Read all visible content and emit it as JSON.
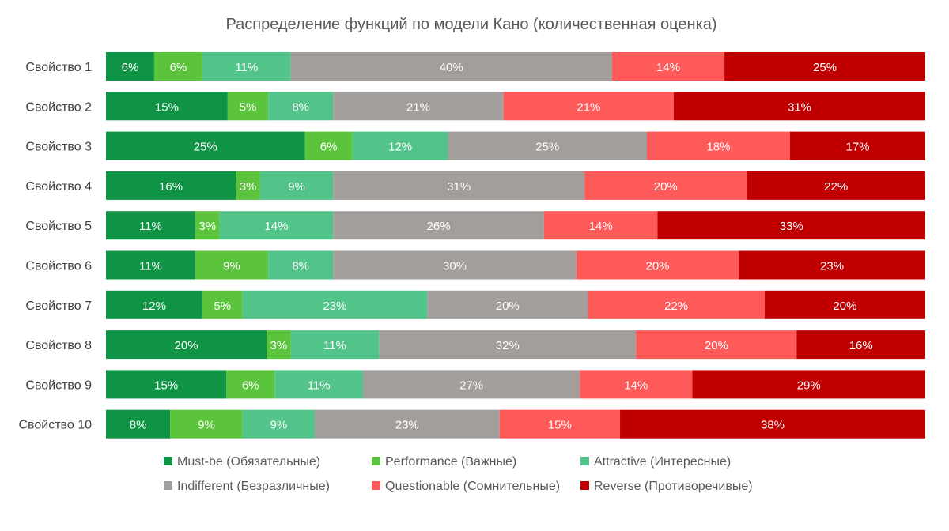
{
  "chart_data": {
    "type": "bar",
    "orientation": "horizontal",
    "stacked": "percent",
    "title": "Распределение функций по модели Кано (количественная оценка)",
    "categories": [
      "Свойство 1",
      "Свойство 2",
      "Свойство 3",
      "Свойство 4",
      "Свойство 5",
      "Свойство 6",
      "Свойство 7",
      "Свойство 8",
      "Свойство 9",
      "Свойство 10"
    ],
    "series": [
      {
        "name": "Must-be (Обязательные)",
        "color": "#0e9444",
        "values": [
          6,
          15,
          25,
          16,
          11,
          11,
          12,
          20,
          15,
          8
        ]
      },
      {
        "name": "Performance (Важные)",
        "color": "#5cc43c",
        "values": [
          6,
          5,
          6,
          3,
          3,
          9,
          5,
          3,
          6,
          9
        ]
      },
      {
        "name": "Attractive (Интересные)",
        "color": "#52c48a",
        "values": [
          11,
          8,
          12,
          9,
          14,
          8,
          23,
          11,
          11,
          9
        ]
      },
      {
        "name": "Indifferent (Безразличные)",
        "color": "#a29e9c",
        "values": [
          40,
          21,
          25,
          31,
          26,
          30,
          20,
          32,
          27,
          23
        ]
      },
      {
        "name": "Questionable (Сомнительные)",
        "color": "#ff5a5a",
        "values": [
          14,
          21,
          18,
          20,
          14,
          20,
          22,
          20,
          14,
          15
        ]
      },
      {
        "name": "Reverse (Противоречивые)",
        "color": "#c00000",
        "values": [
          25,
          31,
          17,
          22,
          33,
          23,
          20,
          16,
          29,
          38
        ]
      }
    ],
    "value_suffix": "%",
    "grid": false,
    "legend_position": "bottom"
  }
}
